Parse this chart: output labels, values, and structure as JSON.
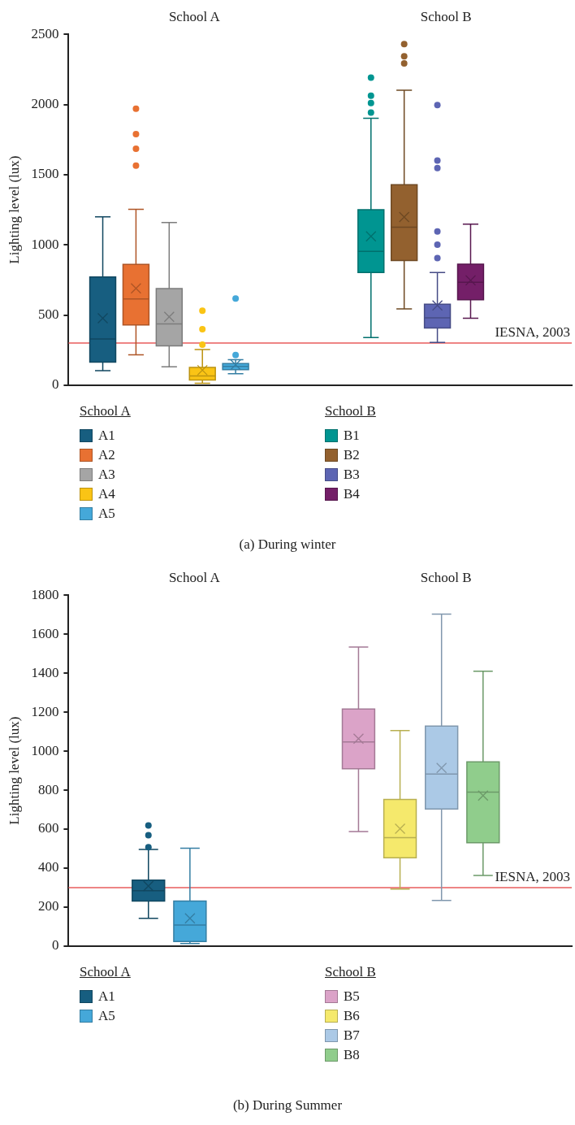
{
  "chart_data": [
    {
      "type": "box",
      "title": "(a) During winter",
      "ylabel": "Lighting level (lux)",
      "categories": [
        "School A",
        "School B"
      ],
      "ylim": [
        0,
        2500
      ],
      "yticks": [
        0,
        500,
        1000,
        1500,
        2000,
        2500
      ],
      "grid": false,
      "legend": "bottom",
      "marker": "cross",
      "ref_lines": [
        {
          "axis": "y",
          "value": 300,
          "label": "IESNA, 2003",
          "color": "#e85c5c"
        }
      ],
      "series": [
        {
          "name": "A1",
          "color": "#175e80",
          "boxes": [
            {
              "low": 103,
              "q1": 164,
              "median": 329,
              "q3": 771,
              "high": 1200,
              "mean": 477
            },
            null
          ]
        },
        {
          "name": "A2",
          "color": "#e87132",
          "boxes": [
            {
              "low": 216,
              "q1": 429,
              "median": 615,
              "q3": 861,
              "high": 1254,
              "mean": 690,
              "outliers": [
                1565,
                1685,
                1789,
                1971
              ]
            },
            null
          ]
        },
        {
          "name": "A3",
          "color": "#a5a5a5",
          "boxes": [
            {
              "low": 131,
              "q1": 280,
              "median": 436,
              "q3": 688,
              "high": 1159,
              "mean": 487
            },
            null
          ]
        },
        {
          "name": "A4",
          "color": "#fac415",
          "boxes": [
            {
              "low": 13,
              "q1": 36,
              "median": 65,
              "q3": 126,
              "high": 254,
              "mean": 107,
              "outliers": [
                288,
                398,
                530
              ]
            },
            null
          ]
        },
        {
          "name": "A5",
          "color": "#45a8d9",
          "boxes": [
            {
              "low": 82,
              "q1": 111,
              "median": 133,
              "q3": 154,
              "high": 182,
              "mean": 145,
              "outliers": [
                214,
                617
              ]
            },
            null
          ]
        },
        {
          "name": "B1",
          "color": "#009591",
          "boxes": [
            null,
            {
              "low": 339,
              "q1": 803,
              "median": 954,
              "q3": 1251,
              "high": 1903,
              "mean": 1061,
              "outliers": [
                1943,
                2011,
                2063,
                2193
              ]
            }
          ]
        },
        {
          "name": "B2",
          "color": "#93612f",
          "boxes": [
            null,
            {
              "low": 543,
              "q1": 889,
              "median": 1126,
              "q3": 1429,
              "high": 2103,
              "mean": 1198,
              "outliers": [
                2293,
                2344,
                2432
              ]
            }
          ]
        },
        {
          "name": "B3",
          "color": "#5d65b3",
          "boxes": [
            null,
            {
              "low": 305,
              "q1": 408,
              "median": 480,
              "q3": 577,
              "high": 803,
              "mean": 568,
              "outliers": [
                906,
                1001,
                1095,
                1548,
                1601,
                1996
              ]
            }
          ]
        },
        {
          "name": "B4",
          "color": "#741f68",
          "boxes": [
            null,
            {
              "low": 477,
              "q1": 609,
              "median": 734,
              "q3": 863,
              "high": 1147,
              "mean": 747
            }
          ]
        }
      ]
    },
    {
      "type": "box",
      "title": "(b) During Summer",
      "ylabel": "Lighting level (lux)",
      "categories": [
        "School A",
        "School B"
      ],
      "ylim": [
        0,
        1800
      ],
      "yticks": [
        0,
        200,
        400,
        600,
        800,
        1000,
        1200,
        1400,
        1600,
        1800
      ],
      "grid": false,
      "legend": "bottom",
      "marker": "cross",
      "ref_lines": [
        {
          "axis": "y",
          "value": 300,
          "label": "IESNA, 2003",
          "color": "#e85c5c"
        }
      ],
      "series": [
        {
          "name": "A1",
          "color": "#175e80",
          "boxes": [
            {
              "low": 142,
              "q1": 231,
              "median": 284,
              "q3": 338,
              "high": 496,
              "mean": 308,
              "outliers": [
                507,
                569,
                619
              ]
            },
            null
          ]
        },
        {
          "name": "A5",
          "color": "#45a8d9",
          "boxes": [
            {
              "low": 13,
              "q1": 23,
              "median": 108,
              "q3": 231,
              "high": 502,
              "mean": 142
            },
            null
          ]
        },
        {
          "name": "B5",
          "color": "#dba3c8",
          "boxes": [
            null,
            {
              "low": 588,
              "q1": 910,
              "median": 1048,
              "q3": 1217,
              "high": 1535,
              "mean": 1064
            }
          ]
        },
        {
          "name": "B6",
          "color": "#f5e96c",
          "boxes": [
            null,
            {
              "low": 292,
              "q1": 453,
              "median": 556,
              "q3": 752,
              "high": 1106,
              "mean": 602
            }
          ]
        },
        {
          "name": "B7",
          "color": "#abc9e6",
          "boxes": [
            null,
            {
              "low": 234,
              "q1": 703,
              "median": 883,
              "q3": 1129,
              "high": 1704,
              "mean": 914
            }
          ]
        },
        {
          "name": "B8",
          "color": "#90cd8c",
          "boxes": [
            null,
            {
              "low": 362,
              "q1": 530,
              "median": 790,
              "q3": 945,
              "high": 1410,
              "mean": 772
            }
          ]
        }
      ]
    }
  ]
}
